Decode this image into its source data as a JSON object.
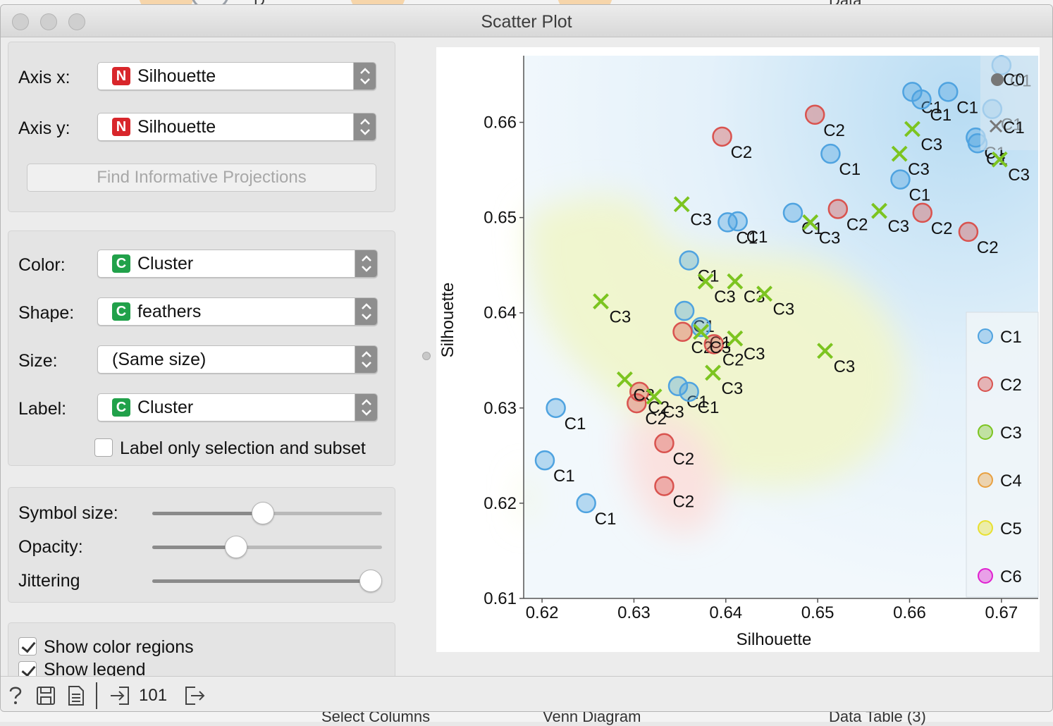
{
  "background": {
    "label_top_left": "D",
    "label_top_right": "Data",
    "bottom_labels": [
      "Select Columns",
      "Venn Diagram",
      "Data Table (3)"
    ]
  },
  "window": {
    "title": "Scatter Plot"
  },
  "axes_panel": {
    "axis_x_label": "Axis x:",
    "axis_x_value": "Silhouette",
    "axis_x_type": "N",
    "axis_y_label": "Axis y:",
    "axis_y_value": "Silhouette",
    "axis_y_type": "N",
    "find_button": "Find Informative Projections"
  },
  "attr_panel": {
    "color_label": "Color:",
    "color_value": "Cluster",
    "color_type": "C",
    "shape_label": "Shape:",
    "shape_value": "feathers",
    "shape_type": "C",
    "size_label": "Size:",
    "size_value": "(Same size)",
    "label_label": "Label:",
    "label_value": "Cluster",
    "label_type": "C",
    "label_only_text": "Label only selection and subset",
    "label_only_checked": false
  },
  "sliders_panel": {
    "symbol_size_label": "Symbol size:",
    "symbol_size": 0.48,
    "opacity_label": "Opacity:",
    "opacity": 0.35,
    "jittering_label": "Jittering",
    "jittering": 1.0
  },
  "options_panel": {
    "show_color_regions": "Show color regions",
    "show_legend": "Show legend"
  },
  "status": {
    "count": "101"
  },
  "colors": {
    "C1": "#4fa3e0",
    "C2": "#d9534f",
    "C3": "#7cc420",
    "C4": "#e8a040",
    "C5": "#e8e030",
    "C6": "#e020d0"
  },
  "chart_data": {
    "type": "scatter",
    "xlabel": "Silhouette",
    "ylabel": "Silhouette",
    "xlim": [
      0.618,
      0.674
    ],
    "ylim": [
      0.61,
      0.667
    ],
    "xticks": [
      "0.62",
      "0.63",
      "0.64",
      "0.65",
      "0.66",
      "0.67"
    ],
    "yticks": [
      "0.61",
      "0.62",
      "0.63",
      "0.64",
      "0.65",
      "0.66"
    ],
    "legend": [
      "C1",
      "C2",
      "C3",
      "C4",
      "C5",
      "C6"
    ],
    "legend_placement": "right",
    "top_legend": [
      "C0",
      "C1"
    ],
    "points": [
      {
        "x": 0.6215,
        "y": 0.63,
        "c": "C1"
      },
      {
        "x": 0.6203,
        "y": 0.6245,
        "c": "C1"
      },
      {
        "x": 0.6248,
        "y": 0.62,
        "c": "C1"
      },
      {
        "x": 0.636,
        "y": 0.6455,
        "c": "C1"
      },
      {
        "x": 0.6355,
        "y": 0.6402,
        "c": "C1"
      },
      {
        "x": 0.6373,
        "y": 0.6385,
        "c": "C1"
      },
      {
        "x": 0.6348,
        "y": 0.6323,
        "c": "C1"
      },
      {
        "x": 0.636,
        "y": 0.6317,
        "c": "C1"
      },
      {
        "x": 0.6402,
        "y": 0.6495,
        "c": "C1"
      },
      {
        "x": 0.6413,
        "y": 0.6496,
        "c": "C1"
      },
      {
        "x": 0.6473,
        "y": 0.6505,
        "c": "C1"
      },
      {
        "x": 0.6514,
        "y": 0.6567,
        "c": "C1"
      },
      {
        "x": 0.659,
        "y": 0.654,
        "c": "C1"
      },
      {
        "x": 0.6603,
        "y": 0.6632,
        "c": "C1"
      },
      {
        "x": 0.6613,
        "y": 0.6624,
        "c": "C1"
      },
      {
        "x": 0.6642,
        "y": 0.6632,
        "c": "C1"
      },
      {
        "x": 0.6672,
        "y": 0.6584,
        "c": "C1"
      },
      {
        "x": 0.6674,
        "y": 0.6578,
        "c": "C1"
      },
      {
        "x": 0.669,
        "y": 0.6614,
        "c": "C1"
      },
      {
        "x": 0.67,
        "y": 0.666,
        "c": "C1"
      },
      {
        "x": 0.6497,
        "y": 0.6608,
        "c": "C2"
      },
      {
        "x": 0.6396,
        "y": 0.6585,
        "c": "C2"
      },
      {
        "x": 0.6522,
        "y": 0.6509,
        "c": "C2"
      },
      {
        "x": 0.6614,
        "y": 0.6505,
        "c": "C2"
      },
      {
        "x": 0.6664,
        "y": 0.6485,
        "c": "C2"
      },
      {
        "x": 0.6353,
        "y": 0.638,
        "c": "C2"
      },
      {
        "x": 0.6387,
        "y": 0.6367,
        "c": "C2"
      },
      {
        "x": 0.6306,
        "y": 0.6317,
        "c": "C2"
      },
      {
        "x": 0.6303,
        "y": 0.6305,
        "c": "C2"
      },
      {
        "x": 0.6333,
        "y": 0.6263,
        "c": "C2"
      },
      {
        "x": 0.6333,
        "y": 0.6218,
        "c": "C2"
      },
      {
        "x": 0.6603,
        "y": 0.6593,
        "c": "C3"
      },
      {
        "x": 0.6589,
        "y": 0.6567,
        "c": "C3"
      },
      {
        "x": 0.6698,
        "y": 0.6561,
        "c": "C3"
      },
      {
        "x": 0.6567,
        "y": 0.6507,
        "c": "C3"
      },
      {
        "x": 0.6492,
        "y": 0.6495,
        "c": "C3"
      },
      {
        "x": 0.6352,
        "y": 0.6514,
        "c": "C3"
      },
      {
        "x": 0.6378,
        "y": 0.6433,
        "c": "C3"
      },
      {
        "x": 0.641,
        "y": 0.6433,
        "c": "C3"
      },
      {
        "x": 0.6442,
        "y": 0.642,
        "c": "C3"
      },
      {
        "x": 0.6264,
        "y": 0.6412,
        "c": "C3"
      },
      {
        "x": 0.6373,
        "y": 0.638,
        "c": "C3"
      },
      {
        "x": 0.641,
        "y": 0.6373,
        "c": "C3"
      },
      {
        "x": 0.6508,
        "y": 0.636,
        "c": "C3"
      },
      {
        "x": 0.6386,
        "y": 0.6337,
        "c": "C3"
      },
      {
        "x": 0.629,
        "y": 0.633,
        "c": "C3"
      },
      {
        "x": 0.6322,
        "y": 0.6312,
        "c": "C3"
      }
    ]
  }
}
